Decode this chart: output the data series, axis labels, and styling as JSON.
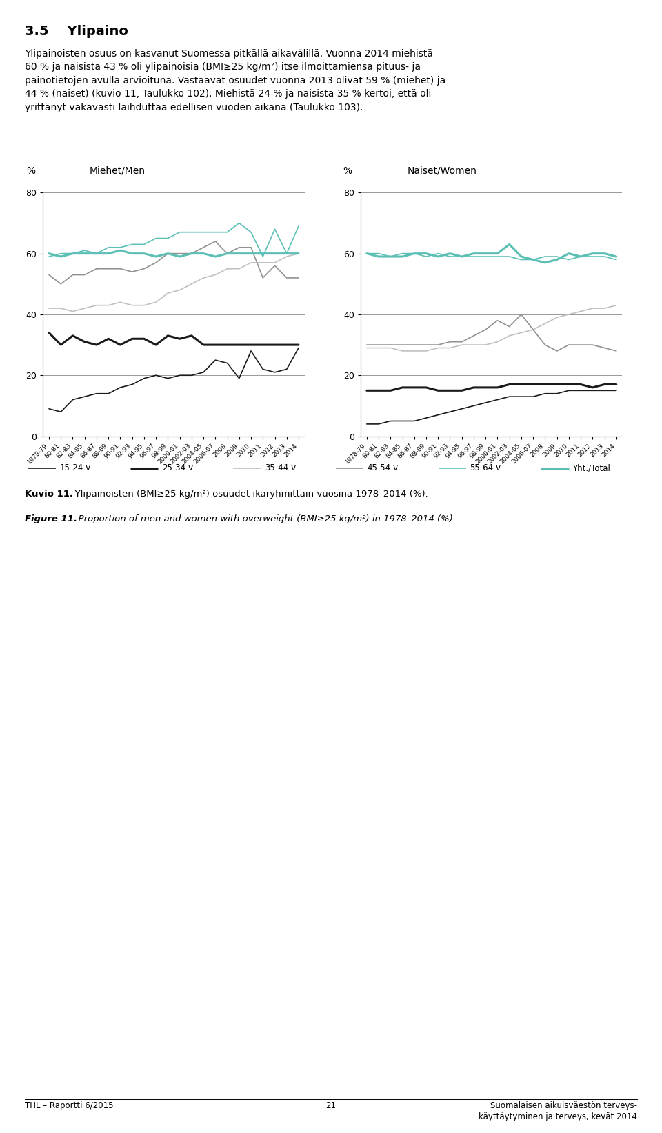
{
  "years": [
    "1978-79",
    "80-81",
    "82-83",
    "84-85",
    "86-87",
    "88-89",
    "90-91",
    "92-93",
    "94-95",
    "96-97",
    "98-99",
    "2000-01",
    "2002-03",
    "2004-05",
    "2006-07",
    "2008",
    "2009",
    "2010",
    "2011",
    "2012",
    "2013",
    "2014"
  ],
  "men": {
    "15-24": [
      9,
      8,
      12,
      13,
      14,
      14,
      16,
      17,
      19,
      20,
      19,
      20,
      20,
      21,
      25,
      24,
      19,
      28,
      22,
      21,
      22,
      29
    ],
    "25-34": [
      34,
      30,
      33,
      31,
      30,
      32,
      30,
      32,
      32,
      30,
      33,
      32,
      33,
      30,
      30,
      30,
      30,
      30,
      30,
      30,
      30,
      30
    ],
    "35-44": [
      42,
      42,
      41,
      42,
      43,
      43,
      44,
      43,
      43,
      44,
      47,
      48,
      50,
      52,
      53,
      55,
      55,
      57,
      57,
      57,
      59,
      60
    ],
    "45-54": [
      53,
      50,
      53,
      53,
      55,
      55,
      55,
      54,
      55,
      57,
      60,
      60,
      60,
      62,
      64,
      60,
      62,
      62,
      52,
      56,
      52,
      52
    ],
    "55-64": [
      59,
      60,
      60,
      61,
      60,
      62,
      62,
      63,
      63,
      65,
      65,
      67,
      67,
      67,
      67,
      67,
      70,
      67,
      59,
      68,
      60,
      69
    ],
    "total": [
      60,
      59,
      60,
      60,
      60,
      60,
      61,
      60,
      60,
      59,
      60,
      59,
      60,
      60,
      59,
      60,
      60,
      60,
      60,
      60,
      60,
      60
    ]
  },
  "women": {
    "15-24": [
      4,
      4,
      5,
      5,
      5,
      6,
      7,
      8,
      9,
      10,
      11,
      12,
      13,
      13,
      13,
      14,
      14,
      15,
      15,
      15,
      15,
      15
    ],
    "25-34": [
      15,
      15,
      15,
      16,
      16,
      16,
      15,
      15,
      15,
      16,
      16,
      16,
      17,
      17,
      17,
      17,
      17,
      17,
      17,
      16,
      17,
      17
    ],
    "35-44": [
      29,
      29,
      29,
      28,
      28,
      28,
      29,
      29,
      30,
      30,
      30,
      31,
      33,
      34,
      35,
      37,
      39,
      40,
      41,
      42,
      42,
      43
    ],
    "45-54": [
      30,
      30,
      30,
      30,
      30,
      30,
      30,
      31,
      31,
      33,
      35,
      38,
      36,
      40,
      35,
      30,
      28,
      30,
      30,
      30,
      29,
      28
    ],
    "55-64": [
      60,
      60,
      59,
      60,
      60,
      59,
      60,
      59,
      59,
      59,
      59,
      59,
      59,
      58,
      58,
      59,
      59,
      58,
      59,
      59,
      59,
      58
    ],
    "total": [
      60,
      59,
      59,
      59,
      60,
      60,
      59,
      60,
      59,
      60,
      60,
      60,
      63,
      59,
      58,
      57,
      58,
      60,
      59,
      60,
      60,
      59
    ]
  },
  "colors": {
    "15-24": "#1a1a1a",
    "25-34": "#1a1a1a",
    "35-44": "#c0c0c0",
    "45-54": "#909090",
    "55-64": "#5bbfb5",
    "total": "#5bbfb5"
  },
  "linewidths": {
    "15-24": 1.2,
    "25-34": 2.2,
    "35-44": 1.2,
    "45-54": 1.2,
    "55-64": 1.2,
    "total": 2.2
  },
  "ylim": [
    0,
    80
  ],
  "yticks": [
    0,
    20,
    40,
    60,
    80
  ],
  "title_men": "Miehet/Men",
  "title_women": "Naiset/Women",
  "ylabel": "%",
  "legend_labels": [
    "15-24-v",
    "25-34-v",
    "35-44-v",
    "45-54-v",
    "55-64-v",
    "Yht./Total"
  ],
  "legend_keys": [
    "15-24",
    "25-34",
    "35-44",
    "45-54",
    "55-64",
    "total"
  ],
  "section_title": "3.5    Ylipaino",
  "caption1_bold": "Kuvio 11.",
  "caption1_rest": " Ylipainoisten (BMI≥25 kg/m²) osuudet ikäryhmittäin vuosina 1978–2014 (%).",
  "caption2_bold": "Figure 11.",
  "caption2_rest": " Proportion of men and women with overweight (BMI≥25 kg/m²) in 1978–2014 (%).",
  "footer_left": "THL – Raportti 6/2015",
  "footer_center": "21",
  "footer_right1": "Suomalaisen aikuisväestön terveys-",
  "footer_right2": "käyttäytyminen ja terveys, kevät 2014",
  "background": "#ffffff"
}
